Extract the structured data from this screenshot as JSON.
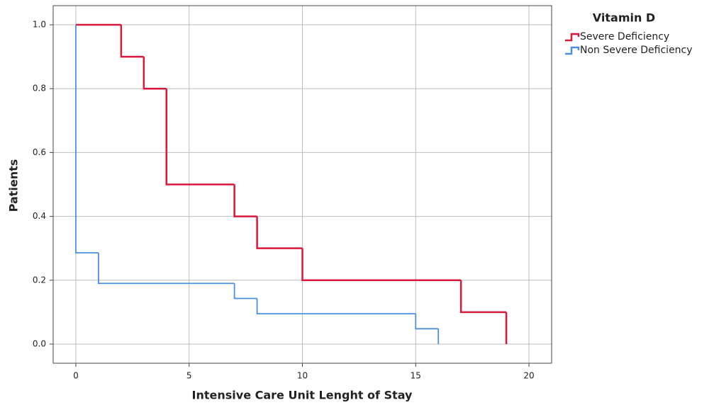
{
  "chart_data": {
    "type": "step",
    "xlabel": "Intensive Care Unit Lenght of Stay",
    "ylabel": "Patients",
    "legend_title": "Vitamin D",
    "legend": "outside-right-top",
    "grid": true,
    "xlim": [
      -1,
      21
    ],
    "ylim": [
      -0.06,
      1.06
    ],
    "xticks": [
      0,
      5,
      10,
      15,
      20
    ],
    "yticks": [
      {
        "value": 0,
        "label": "0.0"
      },
      0.2,
      0.4,
      0.6,
      0.8,
      {
        "value": 1,
        "label": "1.0"
      }
    ],
    "series": [
      {
        "name": "Severe Deficiency",
        "color": "#d8193c",
        "x": [
          0,
          2,
          3,
          4,
          7,
          8,
          10,
          17,
          19
        ],
        "values": [
          1,
          0.9,
          0.8,
          0.5,
          0.4,
          0.3,
          0.2,
          0.1,
          0
        ]
      },
      {
        "name": "Non Severe Deficiency",
        "color": "#4a90e2",
        "x": [
          0,
          0,
          1,
          7,
          8,
          15,
          16
        ],
        "values": [
          1,
          0.286,
          0.19,
          0.143,
          0.095,
          0.048,
          0
        ]
      }
    ]
  }
}
